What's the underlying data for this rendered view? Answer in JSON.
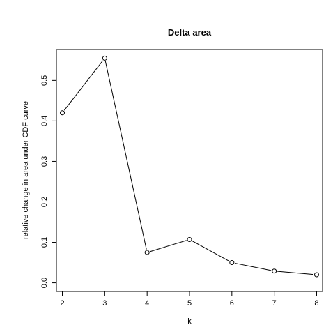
{
  "chart_data": {
    "type": "line",
    "title": "Delta area",
    "xlabel": "k",
    "ylabel": "relative change in area under CDF curve",
    "x": [
      2,
      3,
      4,
      5,
      6,
      7,
      8
    ],
    "values": [
      0.42,
      0.555,
      0.075,
      0.107,
      0.05,
      0.029,
      0.02
    ],
    "xlim": [
      1.86,
      8.14
    ],
    "ylim": [
      -0.0214,
      0.5764
    ],
    "xticks": [
      2,
      3,
      4,
      5,
      6,
      7,
      8
    ],
    "yticks": [
      0.0,
      0.1,
      0.2,
      0.3,
      0.4,
      0.5
    ],
    "ytick_labels": [
      "0.0",
      "0.1",
      "0.2",
      "0.3",
      "0.4",
      "0.5"
    ],
    "grid": false,
    "legend": "none",
    "line_color": "#000000",
    "marker": "open-circle"
  }
}
